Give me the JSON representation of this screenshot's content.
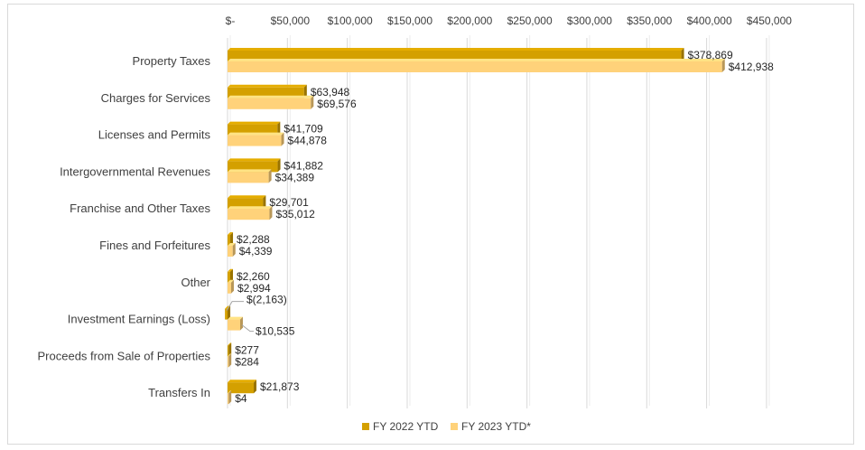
{
  "chart_data": {
    "type": "bar",
    "orientation": "horizontal",
    "title": "",
    "xlabel": "",
    "ylabel": "",
    "xlim": [
      0,
      450000
    ],
    "tick_values": [
      0,
      50000,
      100000,
      150000,
      200000,
      250000,
      300000,
      350000,
      400000,
      450000
    ],
    "tick_labels": [
      "$-",
      "$50,000",
      "$100,000",
      "$150,000",
      "$200,000",
      "$250,000",
      "$300,000",
      "$350,000",
      "$400,000",
      "$450,000"
    ],
    "axis_position": "top",
    "grid": true,
    "legend_position": "bottom",
    "categories": [
      "Property Taxes",
      "Charges for Services",
      "Licenses and Permits",
      "Intergovernmental Revenues",
      "Franchise and Other Taxes",
      "Fines and Forfeitures",
      "Other",
      "Investment Earnings (Loss)",
      "Proceeds from Sale of Properties",
      "Transfers In"
    ],
    "series": [
      {
        "name": "FY 2022 YTD",
        "color": "#d4a000",
        "values": [
          378869,
          63948,
          41709,
          41882,
          29701,
          2288,
          2260,
          -2163,
          277,
          21873
        ],
        "labels": [
          "$378,869",
          "$63,948",
          "$41,709",
          "$41,882",
          "$29,701",
          "$2,288",
          "$2,260",
          "$(2,163)",
          "$277",
          "$21,873"
        ]
      },
      {
        "name": "FY 2023 YTD*",
        "color": "#ffd27a",
        "values": [
          412938,
          69576,
          44878,
          34389,
          35012,
          4339,
          2994,
          10535,
          284,
          4
        ],
        "labels": [
          "$412,938",
          "$69,576",
          "$44,878",
          "$34,389",
          "$35,012",
          "$4,339",
          "$2,994",
          "$10,535",
          "$284",
          "$4"
        ]
      }
    ]
  }
}
